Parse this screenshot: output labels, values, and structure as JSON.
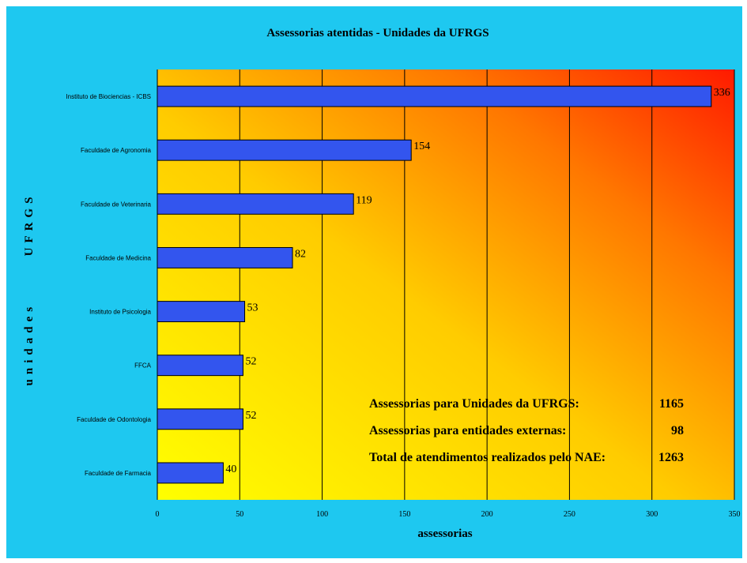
{
  "chart_data": {
    "type": "bar",
    "orientation": "horizontal",
    "title": "Assessorias atentidas -  Unidades da UFRGS",
    "xlabel": "assessorias",
    "ylabel": "unidades      UFRGS",
    "categories": [
      "Instituto de Biociencias - ICBS",
      "Faculdade de Agronomia",
      "Faculdade de Veterinaria",
      "Faculdade de Medicina",
      "Instituto de Psicologia",
      "FFCA",
      "Faculdade de Odontologia",
      "Faculdade de Farmacia"
    ],
    "values": [
      336,
      154,
      119,
      82,
      53,
      52,
      52,
      40
    ],
    "xlim": [
      0,
      350
    ],
    "xticks": [
      0,
      50,
      100,
      150,
      200,
      250,
      300,
      350
    ],
    "grid": "vertical",
    "bar_color": "#3355ee",
    "background_gradient": [
      "#ffff00",
      "#ff2200"
    ],
    "frame_color": "#1ec8f0"
  },
  "summary": [
    {
      "label": "Assessorias para Unidades da UFRGS:",
      "value": "1165"
    },
    {
      "label": "Assessorias para entidades externas:",
      "value": "98"
    },
    {
      "label": "Total de atendimentos realizados pelo NAE:",
      "value": "1263"
    }
  ]
}
